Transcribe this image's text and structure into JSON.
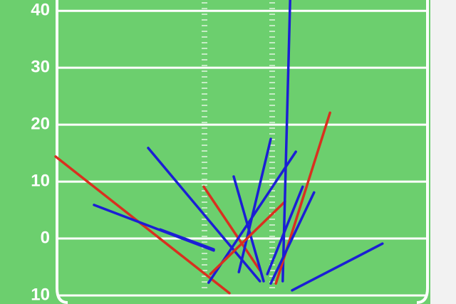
{
  "chart_data": {
    "type": "pass-chart",
    "ylim": [
      -11.5,
      41.9
    ],
    "yticks": [
      40,
      30,
      20,
      10,
      0,
      {
        "value": -10,
        "label": "10"
      }
    ],
    "xlim": [
      0,
      80
    ],
    "grid": true,
    "passes": [
      {
        "color": "#d9301f",
        "x": [
          9.75,
          40.25
        ],
        "y": [
          14.4,
          -9.6
        ]
      },
      {
        "color": "#1b1fd4",
        "x": [
          16.5,
          37.5
        ],
        "y": [
          5.9,
          -2.1
        ]
      },
      {
        "color": "#1b1fd4",
        "x": [
          28.1,
          37.5
        ],
        "y": [
          1.6,
          -1.9
        ]
      },
      {
        "color": "#1b1fd4",
        "x": [
          26,
          45.6
        ],
        "y": [
          15.9,
          -7.5
        ]
      },
      {
        "color": "#d9301f",
        "x": [
          35.75,
          45.6
        ],
        "y": [
          9.1,
          -5.6
        ]
      },
      {
        "color": "#1b1fd4",
        "x": [
          41,
          46.25
        ],
        "y": [
          10.9,
          -7.5
        ]
      },
      {
        "color": "#1b1fd4",
        "x": [
          47.5,
          41.9
        ],
        "y": [
          17.5,
          -5.9
        ]
      },
      {
        "color": "#1b1fd4",
        "x": [
          51.9,
          36.6
        ],
        "y": [
          15.25,
          -7.75
        ]
      },
      {
        "color": "#d9301f",
        "x": [
          50,
          36.9
        ],
        "y": [
          6.5,
          -6.25
        ]
      },
      {
        "color": "#1b1fd4",
        "x": [
          50.9,
          49.6
        ],
        "y": [
          41.9,
          -7.5
        ]
      },
      {
        "color": "#d9301f",
        "x": [
          57.9,
          48.4
        ],
        "y": [
          22.1,
          -7.9
        ]
      },
      {
        "color": "#1b1fd4",
        "x": [
          53.1,
          46.9
        ],
        "y": [
          9.1,
          -6.25
        ]
      },
      {
        "color": "#1b1fd4",
        "x": [
          55.1,
          47.5
        ],
        "y": [
          8.1,
          -7.9
        ]
      },
      {
        "color": "#1b1fd4",
        "x": [
          67.1,
          51.25
        ],
        "y": [
          -0.9,
          -9.1
        ]
      }
    ]
  }
}
